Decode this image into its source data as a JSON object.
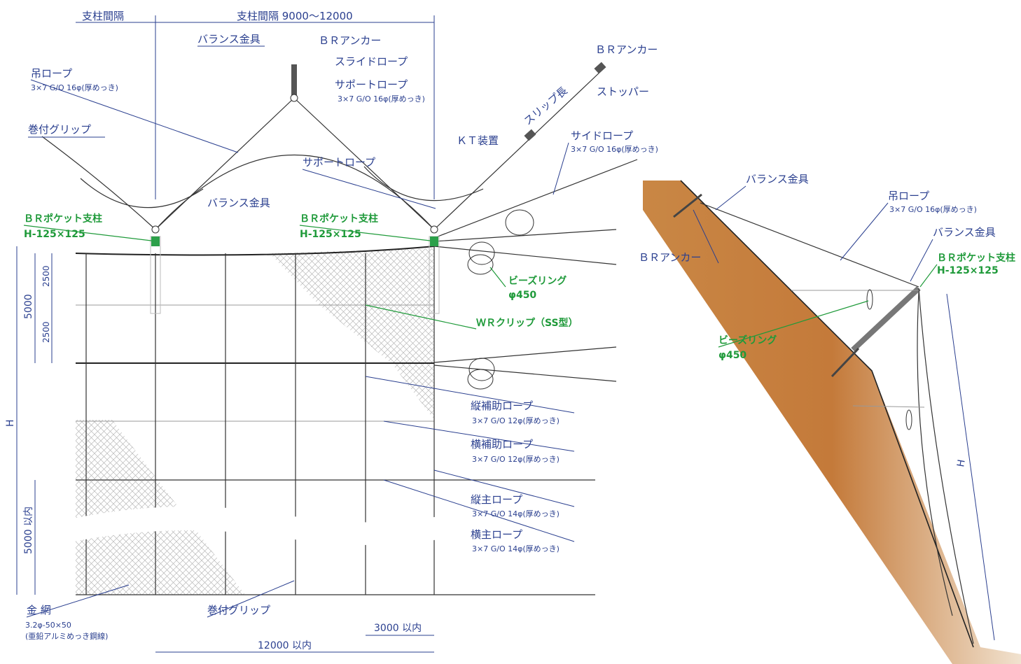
{
  "labels": {
    "post_spacing": "支柱間隔",
    "post_spacing_range": "支柱間隔 9000～12000",
    "balance_fitting_top": "バランス金具",
    "br_anchor_top": "ＢＲアンカー",
    "slide_rope": "スライドロープ",
    "support_rope_top": "サポートロープ",
    "support_rope_top_spec": "3×7 G/O 16φ(厚めっき)",
    "hanging_rope": "吊ロープ",
    "hanging_rope_spec": "3×7 G/O 16φ(厚めっき)",
    "wrap_grip_top": "巻付グリップ",
    "br_anchor_right": "ＢＲアンカー",
    "slip_length": "スリップ長",
    "stopper": "ストッパー",
    "kt_device": "ＫＴ装置",
    "side_rope": "サイドロープ",
    "side_rope_spec": "3×7 G/O 16φ(厚めっき)",
    "support_rope_mid": "サポートロープ",
    "balance_fitting_mid": "バランス金具",
    "br_post_left": "ＢＲポケット支柱",
    "br_post_left_spec": "H-125×125",
    "br_post_right": "ＢＲポケット支柱",
    "br_post_right_spec": "H-125×125",
    "beads_ring": "ビーズリング",
    "beads_ring_spec": "φ450",
    "wr_clip": "ＷＲクリップ（SS型）",
    "vert_aux_rope": "縦補助ロープ",
    "vert_aux_rope_spec": "3×7 G/O 12φ(厚めっき)",
    "horiz_aux_rope": "横補助ロープ",
    "horiz_aux_rope_spec": "3×7 G/O 12φ(厚めっき)",
    "vert_main_rope": "縦主ロープ",
    "vert_main_rope_spec": "3×7 G/O 14φ(厚めっき)",
    "horiz_main_rope": "横主ロープ",
    "horiz_main_rope_spec": "3×7 G/O 14φ(厚めっき)",
    "wire_mesh": "金 網",
    "wire_mesh_spec1": "3.2φ-50×50",
    "wire_mesh_spec2": "(亜鉛アルミめっき鋼線)",
    "wrap_grip_bottom": "巻付グリップ",
    "dim_3000": "3000 以内",
    "dim_12000": "12000 以内",
    "dim_2500_a": "2500",
    "dim_2500_b": "2500",
    "dim_5000": "5000",
    "dim_5000_max": "5000 以内",
    "dim_h": "H"
  },
  "side_view": {
    "balance_fitting": "バランス金具",
    "br_anchor": "ＢＲアンカー",
    "hanging_rope": "吊ロープ",
    "hanging_rope_spec": "3×7 G/O 16φ(厚めっき)",
    "balance_fitting_2": "バランス金具",
    "br_post": "ＢＲポケット支柱",
    "br_post_spec": "H-125×125",
    "beads_ring": "ビーズリング",
    "beads_ring_spec": "φ450",
    "dim_h": "H"
  },
  "colors": {
    "label_blue": "#2a3f8f",
    "label_green": "#1f9a3a",
    "slope_brown": "#c47a3a",
    "rope": "#333333"
  }
}
